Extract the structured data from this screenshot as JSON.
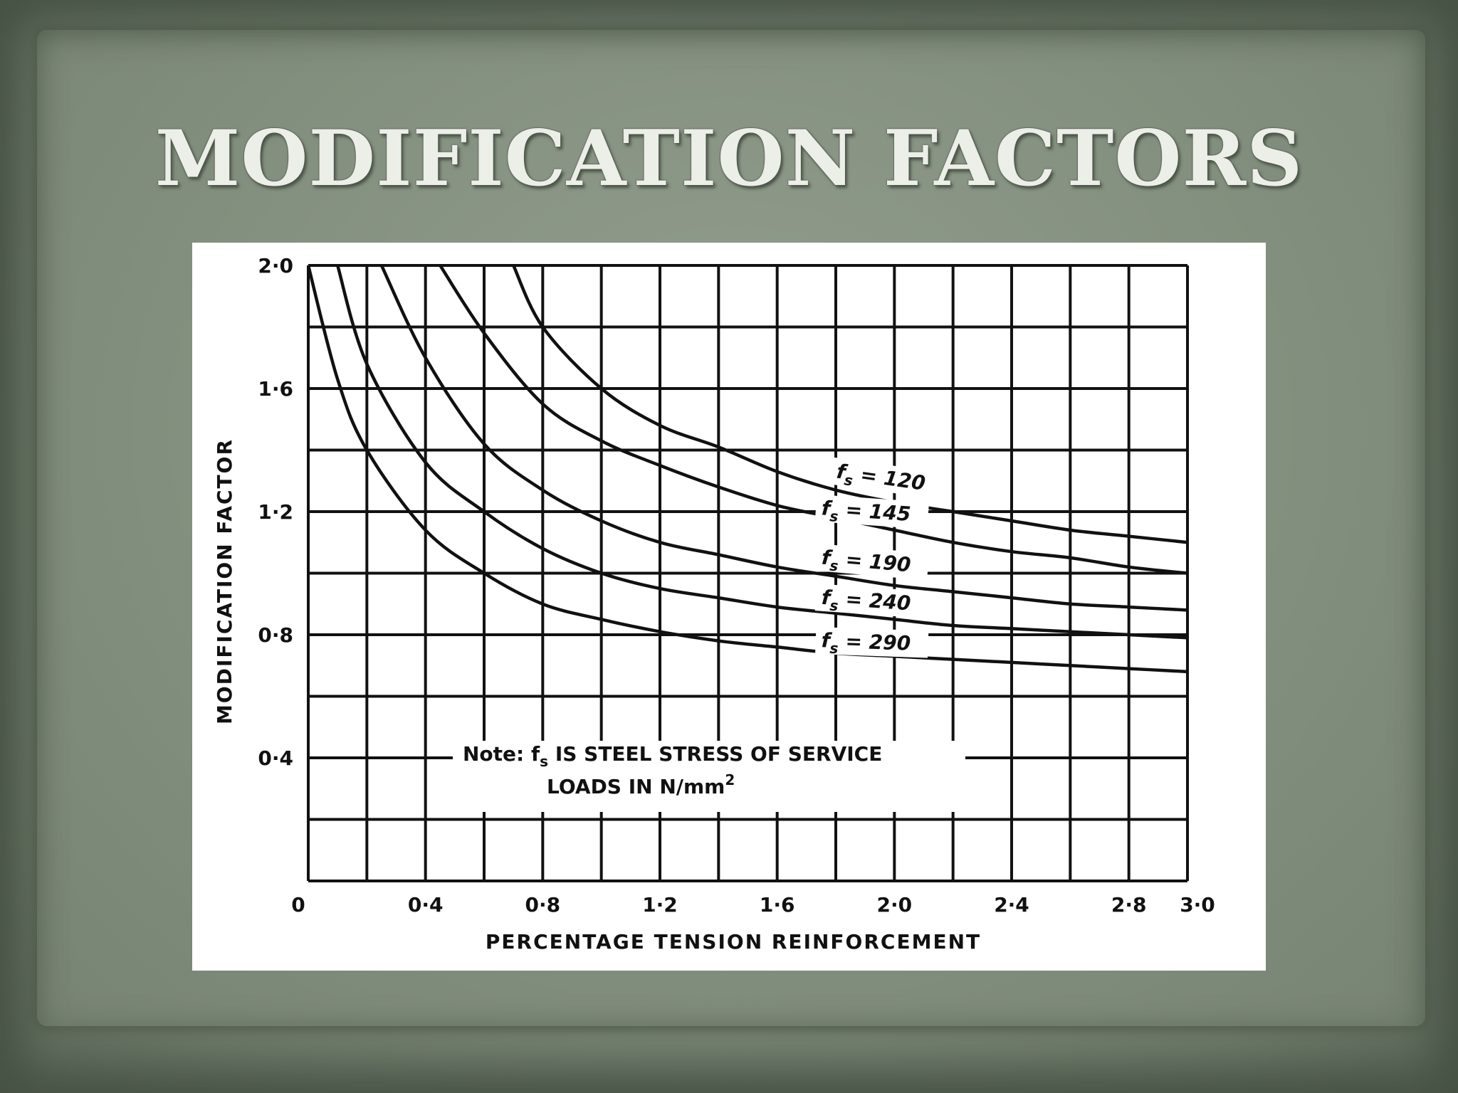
{
  "slide": {
    "title": "MODIFICATION FACTORS"
  },
  "colors": {
    "background": "#7f8b7b",
    "title": "#eceee8",
    "chart_ink": "#111111",
    "chart_background": "#ffffff"
  },
  "chart_data": {
    "type": "line",
    "title": "",
    "xlabel": "PERCENTAGE TENSION REINFORCEMENT",
    "ylabel": "MODIFICATION FACTOR",
    "xlim": [
      0,
      3.0
    ],
    "ylim": [
      0,
      2.0
    ],
    "grid": true,
    "x_ticks": [
      0,
      0.4,
      0.8,
      1.2,
      1.6,
      2.0,
      2.4,
      2.8,
      3.0
    ],
    "x_tick_labels": [
      "0",
      "0·4",
      "0·8",
      "1·2",
      "1·6",
      "2·0",
      "2·4",
      "2·8",
      "3·0"
    ],
    "y_ticks": [
      0.4,
      0.8,
      1.2,
      1.6,
      2.0
    ],
    "y_tick_labels": [
      "0·4",
      "0·8",
      "1·2",
      "1·6",
      "2·0"
    ],
    "series": [
      {
        "name": "fs = 120",
        "label_main": "f",
        "label_sub": "s",
        "label_rest": " = 120",
        "x": [
          0.7,
          0.8,
          1.0,
          1.2,
          1.4,
          1.6,
          1.8,
          2.0,
          2.2,
          2.4,
          2.6,
          2.8,
          3.0
        ],
        "y": [
          2.0,
          1.8,
          1.6,
          1.48,
          1.41,
          1.33,
          1.27,
          1.23,
          1.2,
          1.17,
          1.14,
          1.12,
          1.1
        ]
      },
      {
        "name": "fs = 145",
        "label_main": "f",
        "label_sub": "s",
        "label_rest": " = 145",
        "x": [
          0.45,
          0.6,
          0.8,
          1.0,
          1.2,
          1.4,
          1.6,
          1.8,
          2.0,
          2.2,
          2.4,
          2.6,
          2.8,
          3.0
        ],
        "y": [
          2.0,
          1.78,
          1.55,
          1.43,
          1.35,
          1.28,
          1.22,
          1.18,
          1.14,
          1.1,
          1.07,
          1.05,
          1.02,
          1.0
        ]
      },
      {
        "name": "fs = 190",
        "label_main": "f",
        "label_sub": "s",
        "label_rest": " = 190",
        "x": [
          0.25,
          0.4,
          0.6,
          0.8,
          1.0,
          1.2,
          1.4,
          1.6,
          1.8,
          2.0,
          2.2,
          2.4,
          2.6,
          2.8,
          3.0
        ],
        "y": [
          2.0,
          1.7,
          1.42,
          1.27,
          1.17,
          1.1,
          1.06,
          1.02,
          0.99,
          0.96,
          0.94,
          0.92,
          0.9,
          0.89,
          0.88
        ]
      },
      {
        "name": "fs = 240",
        "label_main": "f",
        "label_sub": "s",
        "label_rest": " = 240",
        "x": [
          0.1,
          0.2,
          0.4,
          0.6,
          0.8,
          1.0,
          1.2,
          1.4,
          1.6,
          1.8,
          2.0,
          2.2,
          2.4,
          2.6,
          2.8,
          3.0
        ],
        "y": [
          2.0,
          1.68,
          1.36,
          1.2,
          1.08,
          1.0,
          0.95,
          0.92,
          0.89,
          0.87,
          0.85,
          0.83,
          0.82,
          0.81,
          0.8,
          0.79
        ]
      },
      {
        "name": "fs = 290",
        "label_main": "f",
        "label_sub": "s",
        "label_rest": " = 290",
        "x": [
          0.0,
          0.1,
          0.2,
          0.4,
          0.6,
          0.8,
          1.0,
          1.2,
          1.4,
          1.6,
          1.8,
          2.0,
          2.2,
          2.4,
          2.6,
          2.8,
          3.0
        ],
        "y": [
          2.0,
          1.63,
          1.4,
          1.14,
          1.0,
          0.9,
          0.85,
          0.81,
          0.78,
          0.76,
          0.74,
          0.73,
          0.72,
          0.71,
          0.7,
          0.69,
          0.68
        ]
      }
    ],
    "annotation": {
      "line1_prefix": "Note: f",
      "line1_sub": "s",
      "line1_rest": "  IS STEEL STRESS OF SERVICE",
      "line2": "LOADS  IN  N/mm",
      "line2_sup": "2"
    }
  }
}
